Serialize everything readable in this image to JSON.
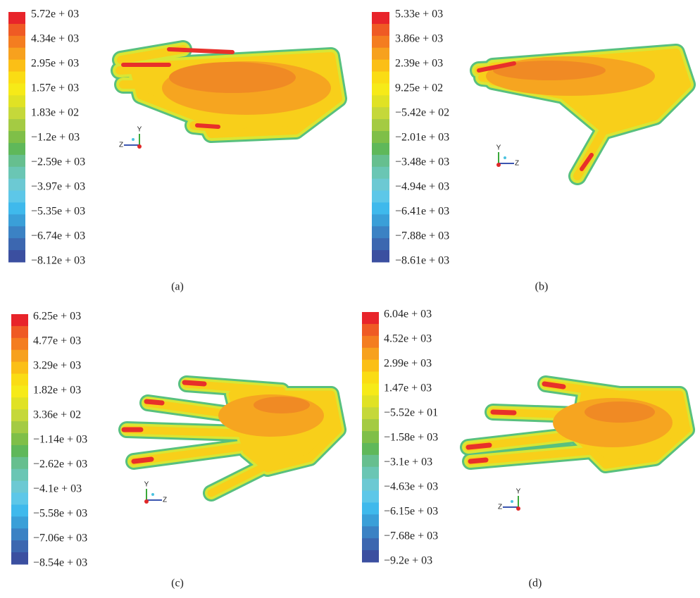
{
  "colormap": [
    "#e8242a",
    "#ef5a24",
    "#f47d20",
    "#f7a11e",
    "#fbbf16",
    "#fadc14",
    "#f6ea18",
    "#e0e224",
    "#c5d83a",
    "#a4cb43",
    "#7fbf48",
    "#5fb85a",
    "#66bf8f",
    "#6ac6b4",
    "#6cc9d3",
    "#5dc7e8",
    "#3fb9ec",
    "#3a9fd8",
    "#3b82c4",
    "#3c67b0",
    "#3b4fa0"
  ],
  "panels": [
    {
      "caption": "(a)",
      "legend": [
        "5.72e + 03",
        "4.34e + 03",
        "2.95e + 03",
        "1.57e + 03",
        "1.83e + 02",
        "−1.2e + 03",
        "−2.59e + 03",
        "−3.97e + 03",
        "−5.35e + 03",
        "−6.74e + 03",
        "−8.12e + 03"
      ],
      "triad": {
        "up": "Y",
        "side": "Z"
      }
    },
    {
      "caption": "(b)",
      "legend": [
        "5.33e + 03",
        "3.86e + 03",
        "2.39e + 03",
        "9.25e + 02",
        "−5.42e + 02",
        "−2.01e + 03",
        "−3.48e + 03",
        "−4.94e + 03",
        "−6.41e + 03",
        "−7.88e + 03",
        "−8.61e + 03"
      ],
      "triad": {
        "up": "Y",
        "side": "Z"
      }
    },
    {
      "caption": "(c)",
      "legend": [
        "6.25e + 03",
        "4.77e + 03",
        "3.29e + 03",
        "1.82e + 03",
        "3.36e + 02",
        "−1.14e + 03",
        "−2.62e + 03",
        "−4.1e + 03",
        "−5.58e + 03",
        "−7.06e + 03",
        "−8.54e + 03"
      ],
      "triad": {
        "up": "Y",
        "side": "Z"
      }
    },
    {
      "caption": "(d)",
      "legend": [
        "6.04e + 03",
        "4.52e + 03",
        "2.99e + 03",
        "1.47e + 03",
        "−5.52e + 01",
        "−1.58e + 03",
        "−3.1e + 03",
        "−4.63e + 03",
        "−6.15e + 03",
        "−7.68e + 03",
        "−9.2e + 03"
      ],
      "triad": {
        "up": "Y",
        "side": "Z"
      }
    }
  ]
}
